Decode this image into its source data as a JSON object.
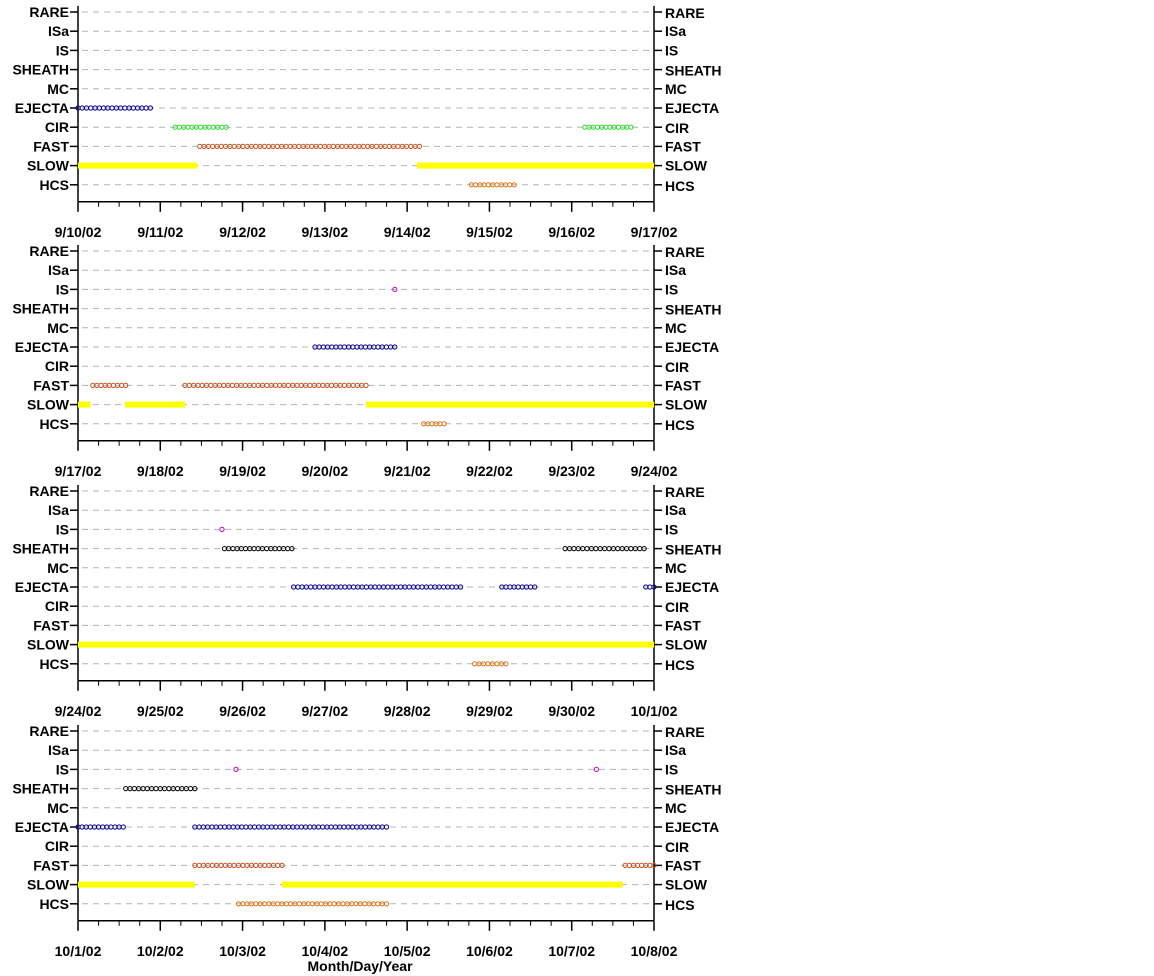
{
  "chart_data": {
    "type": "scatter",
    "xlabel": "Month/Day/Year",
    "categories": [
      "RARE",
      "ISa",
      "IS",
      "SHEATH",
      "MC",
      "EJECTA",
      "CIR",
      "FAST",
      "SLOW",
      "HCS"
    ],
    "colors": {
      "EJECTA": "#00008b",
      "CIR": "#22dd22",
      "FAST": "#c8501e",
      "SLOW": "#ffff00",
      "HCS": "#e07010",
      "IS": "#cc00cc",
      "SHEATH": "#000000",
      "grid": "#b4b4b4"
    },
    "grid": true,
    "panels": [
      {
        "xlim": [
          0,
          7
        ],
        "tick_labels": [
          "9/10/02",
          "9/11/02",
          "9/12/02",
          "9/13/02",
          "9/14/02",
          "9/15/02",
          "9/16/02",
          "9/17/02"
        ],
        "series": [
          {
            "category": "EJECTA",
            "intervals": [
              [
                0.0,
                0.88
              ]
            ]
          },
          {
            "category": "CIR",
            "intervals": [
              [
                1.18,
                1.8
              ],
              [
                6.16,
                6.72
              ]
            ]
          },
          {
            "category": "FAST",
            "intervals": [
              [
                1.48,
                4.15
              ]
            ]
          },
          {
            "category": "SLOW",
            "intervals": [
              [
                0.0,
                1.45
              ],
              [
                4.12,
                7.0
              ]
            ]
          },
          {
            "category": "HCS",
            "intervals": [
              [
                4.78,
                5.3
              ]
            ]
          }
        ]
      },
      {
        "xlim": [
          0,
          7
        ],
        "tick_labels": [
          "9/17/02",
          "9/18/02",
          "9/19/02",
          "9/20/02",
          "9/21/02",
          "9/22/02",
          "9/23/02",
          "9/24/02"
        ],
        "series": [
          {
            "category": "IS",
            "intervals": [
              [
                3.85,
                3.85
              ]
            ]
          },
          {
            "category": "EJECTA",
            "intervals": [
              [
                2.88,
                3.85
              ]
            ]
          },
          {
            "category": "FAST",
            "intervals": [
              [
                0.18,
                0.58
              ],
              [
                1.3,
                3.5
              ]
            ]
          },
          {
            "category": "SLOW",
            "intervals": [
              [
                0.0,
                0.15
              ],
              [
                0.57,
                1.3
              ],
              [
                3.5,
                7.0
              ]
            ]
          },
          {
            "category": "HCS",
            "intervals": [
              [
                4.2,
                4.45
              ]
            ]
          }
        ]
      },
      {
        "xlim": [
          0,
          7
        ],
        "tick_labels": [
          "9/24/02",
          "9/25/02",
          "9/26/02",
          "9/27/02",
          "9/28/02",
          "9/29/02",
          "9/30/02",
          "10/1/02"
        ],
        "series": [
          {
            "category": "IS",
            "intervals": [
              [
                1.75,
                1.75
              ]
            ]
          },
          {
            "category": "SHEATH",
            "intervals": [
              [
                1.78,
                2.6
              ],
              [
                5.92,
                6.88
              ]
            ]
          },
          {
            "category": "EJECTA",
            "intervals": [
              [
                2.62,
                4.65
              ],
              [
                5.15,
                5.55
              ],
              [
                6.9,
                7.0
              ]
            ]
          },
          {
            "category": "SLOW",
            "intervals": [
              [
                0.0,
                7.0
              ]
            ]
          },
          {
            "category": "HCS",
            "intervals": [
              [
                4.82,
                5.2
              ]
            ]
          }
        ]
      },
      {
        "xlim": [
          0,
          7
        ],
        "tick_labels": [
          "10/1/02",
          "10/2/02",
          "10/3/02",
          "10/4/02",
          "10/5/02",
          "10/6/02",
          "10/7/02",
          "10/8/02"
        ],
        "series": [
          {
            "category": "IS",
            "intervals": [
              [
                1.92,
                1.92
              ],
              [
                6.3,
                6.3
              ]
            ]
          },
          {
            "category": "SHEATH",
            "intervals": [
              [
                0.58,
                1.42
              ]
            ]
          },
          {
            "category": "EJECTA",
            "intervals": [
              [
                0.0,
                0.55
              ],
              [
                1.42,
                3.75
              ]
            ]
          },
          {
            "category": "FAST",
            "intervals": [
              [
                1.42,
                2.48
              ],
              [
                6.65,
                7.0
              ]
            ]
          },
          {
            "category": "SLOW",
            "intervals": [
              [
                0.0,
                1.42
              ],
              [
                2.48,
                6.62
              ]
            ]
          },
          {
            "category": "HCS",
            "intervals": [
              [
                1.95,
                3.75
              ]
            ]
          }
        ]
      }
    ]
  }
}
